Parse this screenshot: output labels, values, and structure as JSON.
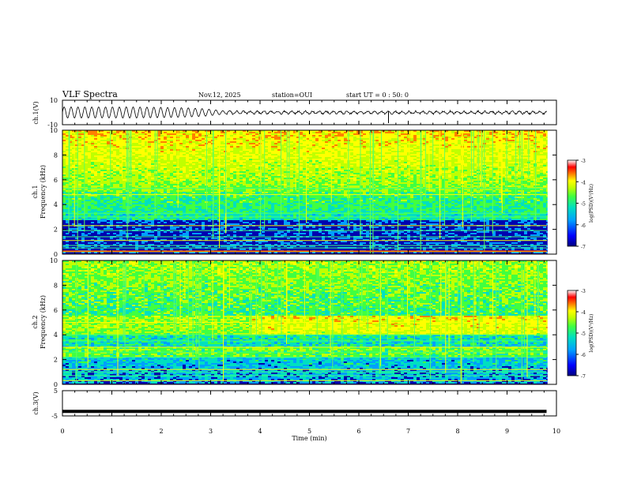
{
  "header": {
    "title": "VLF Spectra",
    "date": "Nov.12, 2025",
    "station": "station=OUI",
    "start": "start  UT =   0 : 50: 0"
  },
  "colorbar": {
    "label": "log(PSD)(V²/Hz)",
    "ticks": [
      "-3",
      "-4",
      "-5",
      "-6",
      "-7"
    ],
    "colors": [
      "#000080",
      "#0000ff",
      "#00a0ff",
      "#00e0c0",
      "#40ff40",
      "#c0ff00",
      "#ffff00",
      "#ff8000",
      "#ff0000",
      "#c00000",
      "#ffffff"
    ]
  },
  "chart_data": [
    {
      "type": "line",
      "title": "ch.1(V)",
      "ylabel": "ch.1(V)",
      "ylim": [
        -10,
        10
      ],
      "yticks": [
        "10",
        "-10"
      ],
      "xlim": [
        0,
        10
      ],
      "series": [
        {
          "values_desc": "",
          "x": [
            0,
            0.5,
            1,
            1.5,
            2,
            2.5,
            2.9,
            3.3,
            4,
            5,
            6,
            7,
            8,
            9,
            9.8
          ],
          "amplitude": [
            4.5,
            4.5,
            4.5,
            4.5,
            4.2,
            3.8,
            3.0,
            1.2,
            1.0,
            1.0,
            1.0,
            1.0,
            1.0,
            1.0,
            1.0
          ]
        }
      ]
    },
    {
      "type": "heatmap",
      "ylabel": "ch.1\nFrequency (kHz)",
      "ylabel_line1": "ch.1",
      "ylabel_line2": "Frequency (kHz)",
      "ylim": [
        0,
        10
      ],
      "yticks": [
        "0",
        "2",
        "4",
        "6",
        "8",
        "10"
      ],
      "xlim": [
        0,
        10
      ]
    },
    {
      "type": "heatmap",
      "ylabel_line1": "ch.2",
      "ylabel_line2": "Frequency (kHz)",
      "ylim": [
        0,
        10
      ],
      "yticks": [
        "0",
        "2",
        "4",
        "6",
        "8",
        "10"
      ],
      "xlim": [
        0,
        10
      ]
    },
    {
      "type": "line",
      "ylabel": "ch.3(V)",
      "ylim": [
        -5,
        5
      ],
      "yticks": [
        "5",
        "-5"
      ],
      "xlim": [
        0,
        10
      ],
      "series": [
        {
          "x": [
            0,
            9.8
          ],
          "values": [
            -3.2,
            -3.2
          ]
        }
      ]
    }
  ],
  "xaxis": {
    "label": "Time (min)",
    "ticks": [
      "0",
      "1",
      "2",
      "3",
      "4",
      "5",
      "6",
      "7",
      "8",
      "9",
      "10"
    ]
  }
}
